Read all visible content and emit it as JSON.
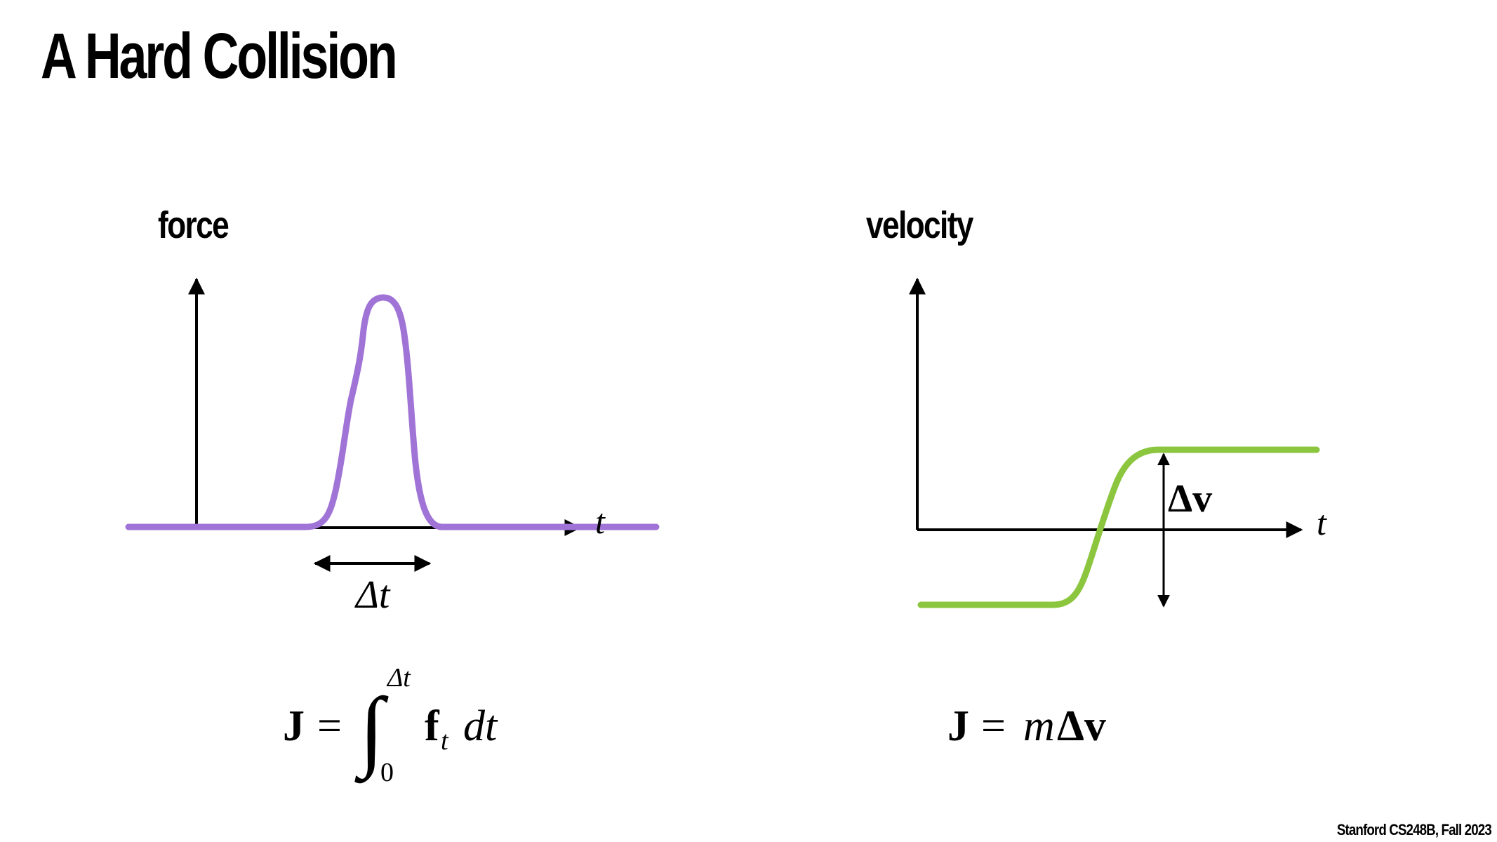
{
  "slide": {
    "title": "A Hard Collision",
    "footer": "Stanford CS248B, Fall 2023"
  },
  "left_panel": {
    "y_label": "force",
    "x_label": "t",
    "interval_label": "Δt",
    "curve_color": "#a074d6",
    "equation": {
      "lhs": "J",
      "equals": "=",
      "integral_sign": "∫",
      "upper_limit": "Δt",
      "lower_limit": "0",
      "integrand": "f",
      "integrand_subscript": "t",
      "differential": "dt"
    }
  },
  "right_panel": {
    "y_label": "velocity",
    "x_label": "t",
    "delta_label": "Δv",
    "curve_color": "#8cc63f",
    "equation": {
      "lhs": "J",
      "equals": "=",
      "mass": "m",
      "delta": "Δv"
    }
  },
  "colors": {
    "background": "#ffffff",
    "text": "#000000",
    "force_curve": "#a074d6",
    "velocity_curve": "#8cc63f"
  }
}
